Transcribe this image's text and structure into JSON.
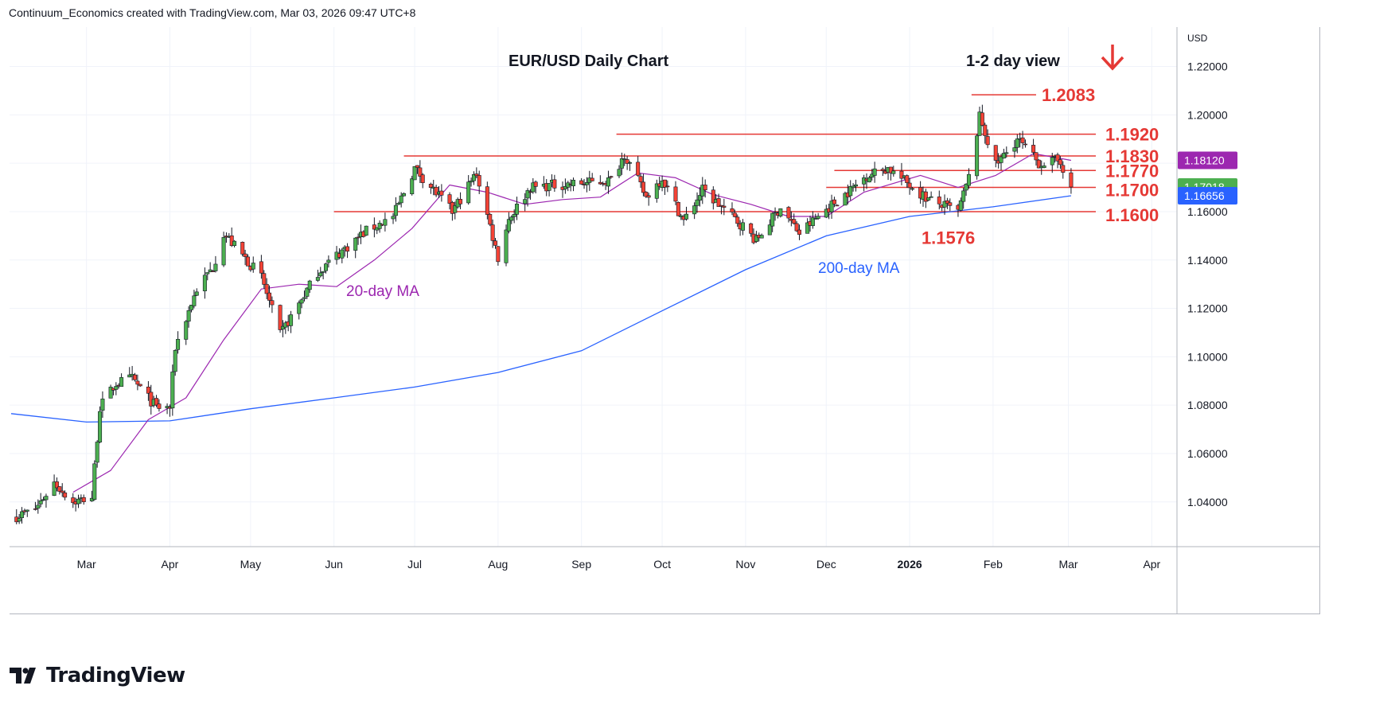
{
  "header": {
    "created_by": "Continuum_Economics created with TradingView.com, Mar 03, 2026 09:47 UTC+8"
  },
  "branding": {
    "logo_text": "TradingView"
  },
  "colors": {
    "up": "#26a69a",
    "down": "#ef5350",
    "candle_up": "#4caf50",
    "candle_down": "#f44336",
    "ma20": "#9c27b0",
    "ma200": "#2962ff",
    "level": "#e53935",
    "text": "#131722"
  },
  "chart_data": {
    "type": "candlestick",
    "title": "EUR/USD Daily Chart",
    "view_label": "1-2 day view",
    "view_direction": "down",
    "currency": "USD",
    "x_tick_labels": [
      "Mar",
      "Apr",
      "May",
      "Jun",
      "Jul",
      "Aug",
      "Sep",
      "Oct",
      "Nov",
      "Dec",
      "2026",
      "Feb",
      "Mar",
      "Apr"
    ],
    "y_tick_labels": [
      "1.22000",
      "1.20000",
      "1.18000",
      "1.16000",
      "1.14000",
      "1.12000",
      "1.10000",
      "1.08000",
      "1.06000",
      "1.04000"
    ],
    "y_ticks": [
      1.22,
      1.2,
      1.18,
      1.16,
      1.14,
      1.12,
      1.1,
      1.08,
      1.06,
      1.04
    ],
    "ylim": [
      1.0215,
      1.2363
    ],
    "levels": [
      {
        "label": "1.2083",
        "value": 1.2083
      },
      {
        "label": "1.1920",
        "value": 1.192
      },
      {
        "label": "1.1830",
        "value": 1.183
      },
      {
        "label": "1.1770",
        "value": 1.177
      },
      {
        "label": "1.1700",
        "value": 1.17
      },
      {
        "label": "1.1600",
        "value": 1.16
      }
    ],
    "low_label": {
      "label": "1.1576",
      "value": 1.1576,
      "date": "2026-01-19"
    },
    "annotations": {
      "ma20": "20-day MA",
      "ma200": "200-day MA"
    },
    "price_tags": [
      {
        "label": "1.18120",
        "value": 1.1812,
        "series": "20-day MA"
      },
      {
        "label": "1.17018",
        "value": 1.17018,
        "series": "EUR/USD"
      },
      {
        "label": "1.16656",
        "value": 1.16656,
        "series": "200-day MA"
      }
    ],
    "price_path": [
      [
        "2025-02-03",
        1.034
      ],
      [
        "2025-02-10",
        1.037
      ],
      [
        "2025-02-17",
        1.048
      ],
      [
        "2025-02-24",
        1.04
      ],
      [
        "2025-03-03",
        1.042
      ],
      [
        "2025-03-06",
        1.079
      ],
      [
        "2025-03-12",
        1.089
      ],
      [
        "2025-03-18",
        1.091
      ],
      [
        "2025-03-27",
        1.079
      ],
      [
        "2025-04-01",
        1.079
      ],
      [
        "2025-04-03",
        1.104
      ],
      [
        "2025-04-11",
        1.128
      ],
      [
        "2025-04-17",
        1.137
      ],
      [
        "2025-04-21",
        1.151
      ],
      [
        "2025-05-05",
        1.133
      ],
      [
        "2025-05-12",
        1.109
      ],
      [
        "2025-05-19",
        1.122
      ],
      [
        "2025-05-26",
        1.135
      ],
      [
        "2025-06-02",
        1.142
      ],
      [
        "2025-06-13",
        1.152
      ],
      [
        "2025-06-23",
        1.158
      ],
      [
        "2025-07-01",
        1.178
      ],
      [
        "2025-07-15",
        1.16
      ],
      [
        "2025-07-24",
        1.176
      ],
      [
        "2025-08-01",
        1.141
      ],
      [
        "2025-08-05",
        1.157
      ],
      [
        "2025-08-13",
        1.17
      ],
      [
        "2025-08-22",
        1.171
      ],
      [
        "2025-09-05",
        1.172
      ],
      [
        "2025-09-12",
        1.173
      ],
      [
        "2025-09-17",
        1.184
      ],
      [
        "2025-09-25",
        1.166
      ],
      [
        "2025-10-01",
        1.174
      ],
      [
        "2025-10-09",
        1.156
      ],
      [
        "2025-10-16",
        1.169
      ],
      [
        "2025-10-31",
        1.154
      ],
      [
        "2025-11-05",
        1.148
      ],
      [
        "2025-11-14",
        1.162
      ],
      [
        "2025-11-21",
        1.151
      ],
      [
        "2025-12-01",
        1.161
      ],
      [
        "2025-12-10",
        1.169
      ],
      [
        "2025-12-16",
        1.175
      ],
      [
        "2025-12-24",
        1.178
      ],
      [
        "2026-01-08",
        1.165
      ],
      [
        "2026-01-19",
        1.16
      ],
      [
        "2026-01-23",
        1.174
      ],
      [
        "2026-01-27",
        1.199
      ],
      [
        "2026-01-28",
        1.196
      ],
      [
        "2026-02-02",
        1.179
      ],
      [
        "2026-02-10",
        1.19
      ],
      [
        "2026-02-18",
        1.18
      ],
      [
        "2026-02-26",
        1.181
      ],
      [
        "2026-03-02",
        1.1702
      ]
    ],
    "ma20_path": [
      [
        "2025-02-24",
        1.044
      ],
      [
        "2025-03-10",
        1.053
      ],
      [
        "2025-03-24",
        1.074
      ],
      [
        "2025-04-07",
        1.083
      ],
      [
        "2025-04-21",
        1.107
      ],
      [
        "2025-05-05",
        1.128
      ],
      [
        "2025-05-19",
        1.13
      ],
      [
        "2025-06-02",
        1.129
      ],
      [
        "2025-06-16",
        1.14
      ],
      [
        "2025-06-30",
        1.153
      ],
      [
        "2025-07-14",
        1.171
      ],
      [
        "2025-07-28",
        1.168
      ],
      [
        "2025-08-11",
        1.163
      ],
      [
        "2025-08-25",
        1.165
      ],
      [
        "2025-09-08",
        1.166
      ],
      [
        "2025-09-22",
        1.176
      ],
      [
        "2025-10-06",
        1.174
      ],
      [
        "2025-10-20",
        1.167
      ],
      [
        "2025-11-03",
        1.163
      ],
      [
        "2025-11-17",
        1.158
      ],
      [
        "2025-12-01",
        1.158
      ],
      [
        "2025-12-15",
        1.168
      ],
      [
        "2026-01-05",
        1.175
      ],
      [
        "2026-01-19",
        1.17
      ],
      [
        "2026-02-02",
        1.175
      ],
      [
        "2026-02-16",
        1.184
      ],
      [
        "2026-03-02",
        1.1812
      ]
    ],
    "ma200_path": [
      [
        "2025-02-01",
        1.0765
      ],
      [
        "2025-03-01",
        1.073
      ],
      [
        "2025-04-01",
        1.0735
      ],
      [
        "2025-05-01",
        1.0785
      ],
      [
        "2025-06-01",
        1.083
      ],
      [
        "2025-07-01",
        1.0875
      ],
      [
        "2025-08-01",
        1.0935
      ],
      [
        "2025-09-01",
        1.1025
      ],
      [
        "2025-10-01",
        1.119
      ],
      [
        "2025-11-01",
        1.136
      ],
      [
        "2025-12-01",
        1.15
      ],
      [
        "2026-01-01",
        1.158
      ],
      [
        "2026-02-01",
        1.162
      ],
      [
        "2026-03-02",
        1.16656
      ]
    ]
  }
}
